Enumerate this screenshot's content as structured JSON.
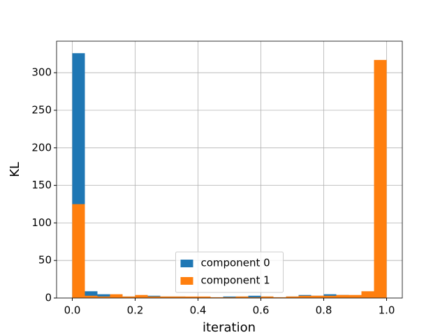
{
  "chart_data": {
    "type": "histogram",
    "xlabel": "iteration",
    "ylabel": "KL",
    "bins": [
      0,
      0.04,
      0.08,
      0.12,
      0.16,
      0.2,
      0.24,
      0.28,
      0.32,
      0.36,
      0.4,
      0.44,
      0.48,
      0.52,
      0.56,
      0.6,
      0.64,
      0.68,
      0.72,
      0.76,
      0.8,
      0.84,
      0.88,
      0.92,
      0.96,
      1.0
    ],
    "series": [
      {
        "name": "component 0",
        "color": "#1f77b4",
        "values": [
          326,
          9,
          5,
          3,
          2,
          2,
          3,
          2,
          2,
          1,
          1,
          1,
          2,
          2,
          3,
          2,
          1,
          2,
          4,
          3,
          5,
          4,
          2,
          1,
          0
        ]
      },
      {
        "name": "component 1",
        "color": "#ff7f0e",
        "values": [
          125,
          3,
          2,
          5,
          2,
          4,
          2,
          2,
          2,
          2,
          2,
          1,
          1,
          2,
          1,
          2,
          1,
          2,
          3,
          3,
          3,
          4,
          4,
          9,
          317
        ]
      }
    ],
    "xlim": [
      -0.05,
      1.05
    ],
    "ylim": [
      0,
      342
    ],
    "xticks": [
      {
        "value": 0,
        "label": "0.0"
      },
      0.2,
      0.4,
      0.6,
      0.8,
      {
        "value": 1,
        "label": "1.0"
      }
    ],
    "yticks": [
      0,
      50,
      100,
      150,
      200,
      250,
      300
    ],
    "grid": true,
    "legend": "lower center"
  }
}
